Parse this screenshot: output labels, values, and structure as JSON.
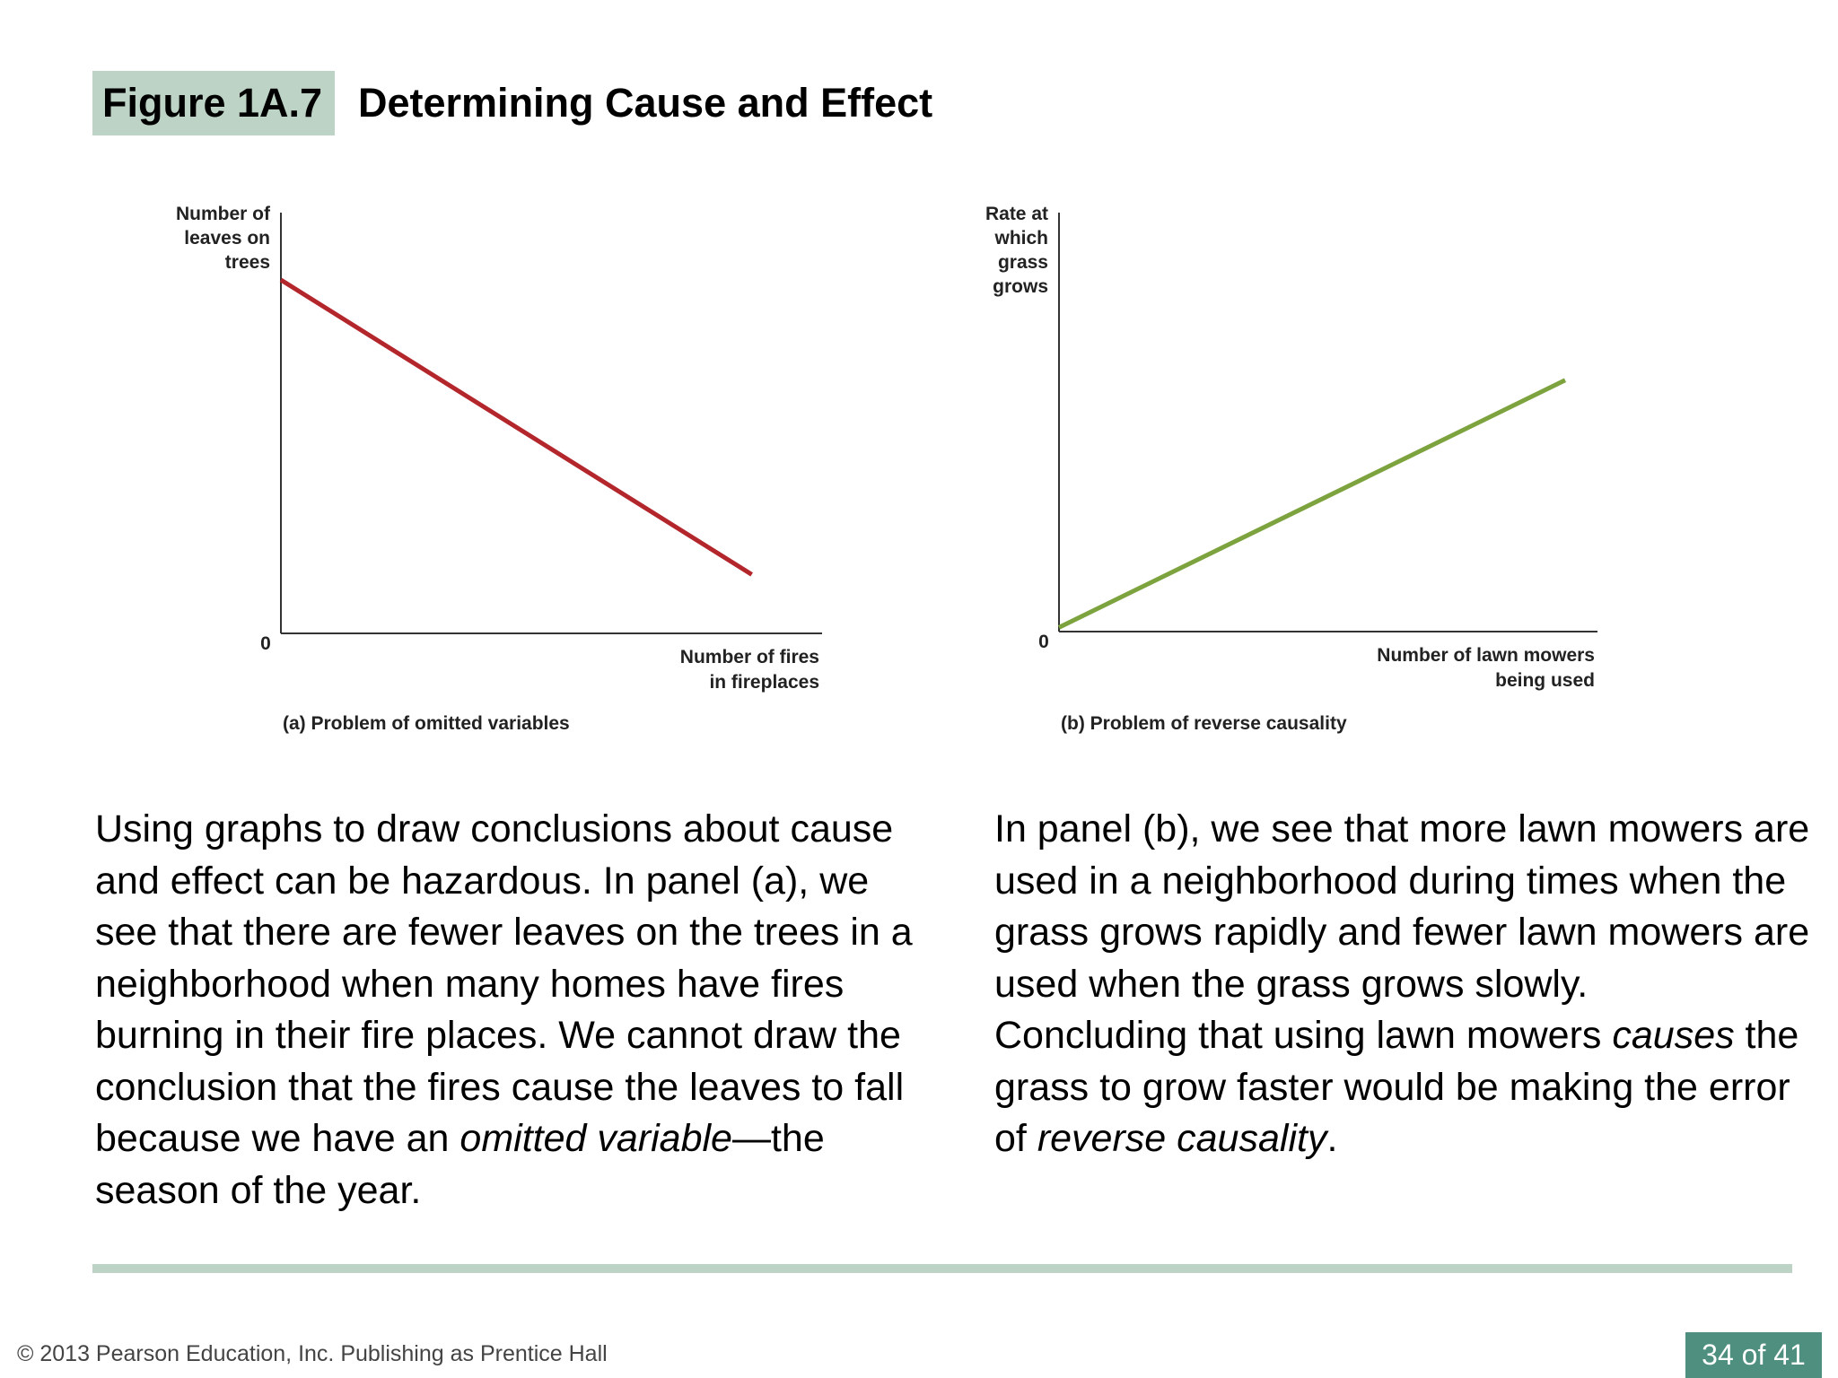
{
  "header": {
    "figure_label": "Figure 1A.7",
    "title": "Determining Cause and Effect"
  },
  "chart_data": [
    {
      "type": "line",
      "ylabel": "Number of\nleaves on\ntrees",
      "xlabel": "Number of fires\nin fireplaces",
      "origin_label": "0",
      "caption": "(a) Problem of omitted variables",
      "series": [
        {
          "x": [
            0,
            0.87
          ],
          "y": [
            0.84,
            0.14
          ]
        }
      ],
      "xlim": [
        0,
        1
      ],
      "ylim": [
        0,
        1
      ],
      "color": "#b3262b",
      "grid": false
    },
    {
      "type": "line",
      "ylabel": "Rate at\nwhich\ngrass\ngrows",
      "xlabel": "Number of lawn mowers\nbeing used",
      "origin_label": "0",
      "caption": "(b) Problem of reverse causality",
      "series": [
        {
          "x": [
            0,
            0.94
          ],
          "y": [
            0.01,
            0.6
          ]
        }
      ],
      "xlim": [
        0,
        1
      ],
      "ylim": [
        0,
        1
      ],
      "color": "#7da33e",
      "grid": false
    }
  ],
  "left_text": {
    "p1": "Using graphs to draw conclusions about cause and effect can be hazardous. In panel (a), we see that there are fewer leaves on the trees in a neighborhood when many homes have fires burning in their fire places. We cannot draw the conclusion that the fires cause the leaves to fall because we have an ",
    "emphasis": "omitted variable",
    "p1_end": "—the season of the year."
  },
  "right_text": {
    "p1": "In panel (b), we see that more lawn mowers are used in a neighborhood during times when the grass grows rapidly and fewer lawn mowers are used when the grass grows slowly.",
    "p2_start": "Concluding that using lawn mowers ",
    "p2_em1": "causes",
    "p2_mid": " the grass to grow faster would be making the error of ",
    "p2_em2": "reverse causality",
    "p2_end": "."
  },
  "footer": {
    "copyright": "© 2013 Pearson Education, Inc. Publishing as Prentice Hall",
    "page": "34 of 41"
  },
  "colors": {
    "accent": "#bcd3c5",
    "page_badge": "#4e8f80",
    "line_a": "#b3262b",
    "line_b": "#7da33e"
  }
}
